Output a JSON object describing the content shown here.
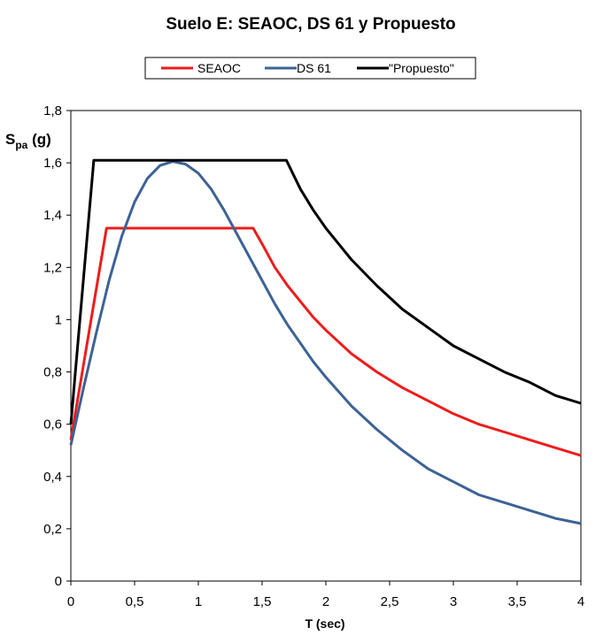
{
  "chart_data": {
    "type": "line",
    "title": "Suelo E:  SEAOC, DS 61 y Propuesto",
    "xlabel": "T (sec)",
    "ylabel": {
      "main": "S",
      "sub": "pa",
      "unit": " (g)"
    },
    "xlim": [
      0,
      4
    ],
    "ylim": [
      0,
      1.8
    ],
    "xticks": [
      0,
      0.5,
      1,
      1.5,
      2,
      2.5,
      3,
      3.5,
      4
    ],
    "xtick_labels": [
      "0",
      "0,5",
      "1",
      "1,5",
      "2",
      "2,5",
      "3",
      "3,5",
      "4"
    ],
    "yticks": [
      0,
      0.2,
      0.4,
      0.6,
      0.8,
      1,
      1.2,
      1.4,
      1.6,
      1.8
    ],
    "ytick_labels": [
      "0",
      "0,2",
      "0,4",
      "0,6",
      "0,8",
      "1",
      "1,2",
      "1,4",
      "1,6",
      "1,8"
    ],
    "grid": false,
    "legend_position": "top-center",
    "series": [
      {
        "name": "SEAOC",
        "color": "#ee1c1c",
        "points": [
          [
            0,
            0.54
          ],
          [
            0.28,
            1.35
          ],
          [
            1.43,
            1.35
          ],
          [
            1.5,
            1.29
          ],
          [
            1.6,
            1.2
          ],
          [
            1.7,
            1.13
          ],
          [
            1.8,
            1.07
          ],
          [
            1.9,
            1.01
          ],
          [
            2.0,
            0.96
          ],
          [
            2.2,
            0.87
          ],
          [
            2.4,
            0.8
          ],
          [
            2.6,
            0.74
          ],
          [
            2.8,
            0.69
          ],
          [
            3.0,
            0.64
          ],
          [
            3.2,
            0.6
          ],
          [
            3.4,
            0.57
          ],
          [
            3.6,
            0.54
          ],
          [
            3.8,
            0.51
          ],
          [
            4.0,
            0.48
          ]
        ]
      },
      {
        "name": "DS 61",
        "color": "#3d6296",
        "points": [
          [
            0,
            0.52
          ],
          [
            0.1,
            0.74
          ],
          [
            0.2,
            0.95
          ],
          [
            0.3,
            1.15
          ],
          [
            0.4,
            1.32
          ],
          [
            0.5,
            1.45
          ],
          [
            0.6,
            1.54
          ],
          [
            0.7,
            1.59
          ],
          [
            0.8,
            1.605
          ],
          [
            0.9,
            1.595
          ],
          [
            1.0,
            1.56
          ],
          [
            1.1,
            1.5
          ],
          [
            1.2,
            1.42
          ],
          [
            1.3,
            1.33
          ],
          [
            1.4,
            1.24
          ],
          [
            1.5,
            1.15
          ],
          [
            1.6,
            1.06
          ],
          [
            1.7,
            0.98
          ],
          [
            1.8,
            0.91
          ],
          [
            1.9,
            0.84
          ],
          [
            2.0,
            0.78
          ],
          [
            2.2,
            0.67
          ],
          [
            2.4,
            0.58
          ],
          [
            2.6,
            0.5
          ],
          [
            2.8,
            0.43
          ],
          [
            3.0,
            0.38
          ],
          [
            3.2,
            0.33
          ],
          [
            3.4,
            0.3
          ],
          [
            3.6,
            0.27
          ],
          [
            3.8,
            0.24
          ],
          [
            4.0,
            0.22
          ]
        ]
      },
      {
        "name": "\"Propuesto\"",
        "color": "#000000",
        "points": [
          [
            0,
            0.6
          ],
          [
            0.18,
            1.61
          ],
          [
            1.69,
            1.61
          ],
          [
            1.8,
            1.5
          ],
          [
            1.9,
            1.42
          ],
          [
            2.0,
            1.35
          ],
          [
            2.2,
            1.23
          ],
          [
            2.4,
            1.13
          ],
          [
            2.6,
            1.04
          ],
          [
            2.8,
            0.97
          ],
          [
            3.0,
            0.9
          ],
          [
            3.2,
            0.85
          ],
          [
            3.4,
            0.8
          ],
          [
            3.6,
            0.76
          ],
          [
            3.8,
            0.71
          ],
          [
            4.0,
            0.68
          ]
        ]
      }
    ]
  }
}
